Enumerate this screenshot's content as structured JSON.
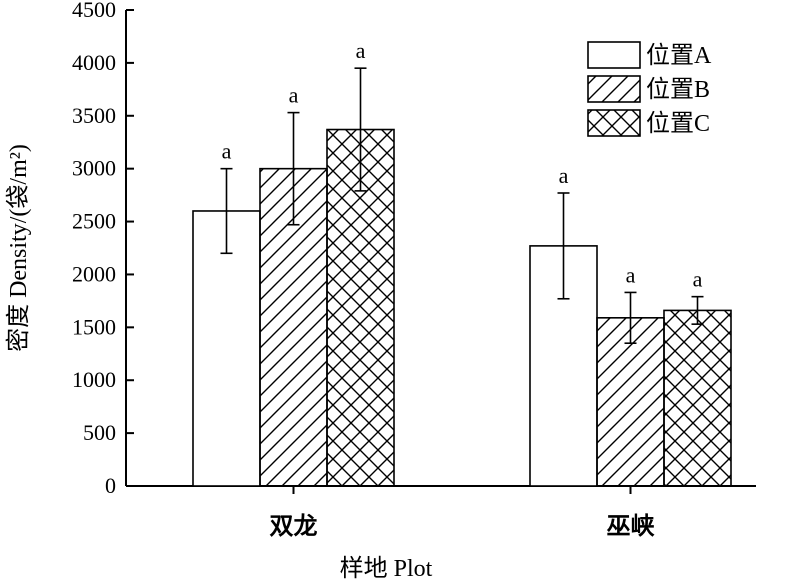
{
  "chart_data": {
    "type": "bar",
    "categories": [
      "双龙",
      "巫峡"
    ],
    "series": [
      {
        "name": "位置A",
        "values": [
          2600,
          2270
        ],
        "errors": [
          400,
          500
        ],
        "pattern": "none"
      },
      {
        "name": "位置B",
        "values": [
          3000,
          1590
        ],
        "errors": [
          530,
          240
        ],
        "pattern": "diagonal"
      },
      {
        "name": "位置C",
        "values": [
          3370,
          1660
        ],
        "errors": [
          580,
          130
        ],
        "pattern": "crosshatch"
      }
    ],
    "significance_labels": [
      [
        "a",
        "a"
      ],
      [
        "a",
        "a"
      ],
      [
        "a",
        "a"
      ]
    ],
    "xlabel": "样地 Plot",
    "ylabel": "密度 Density/(袋/m²)",
    "ylim": [
      0,
      4500
    ],
    "yticks": [
      0,
      500,
      1000,
      1500,
      2000,
      2500,
      3000,
      3500,
      4000,
      4500
    ],
    "grid": false,
    "legend_position": "top-right"
  }
}
